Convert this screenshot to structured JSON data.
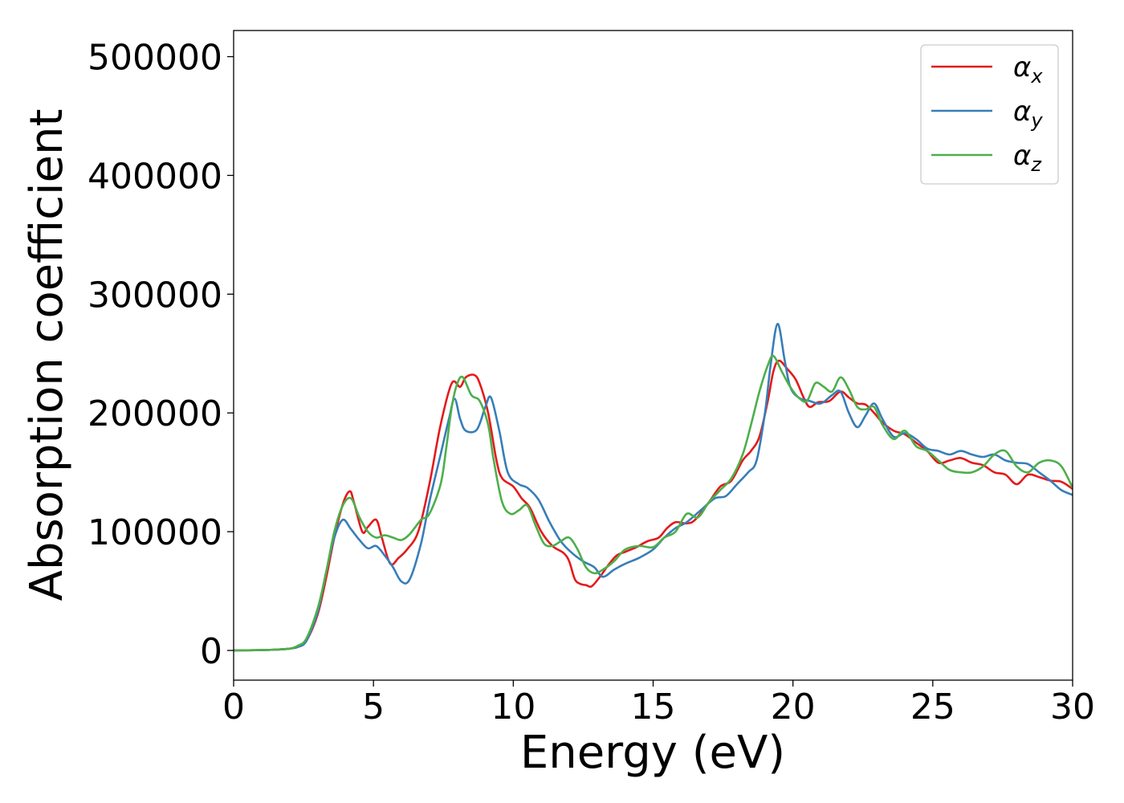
{
  "chart_data": {
    "type": "line",
    "xlabel": "Energy (eV)",
    "ylabel": "Absorption coefficient",
    "xlim": [
      0,
      30
    ],
    "ylim": [
      -25000,
      522000
    ],
    "xticks": [
      0,
      5,
      10,
      15,
      20,
      25,
      30
    ],
    "yticks": [
      0,
      100000,
      200000,
      300000,
      400000,
      500000
    ],
    "grid": false,
    "legend_position": "top-right",
    "series": [
      {
        "name": "α",
        "subscript": "x",
        "color": "#e41a1c",
        "x": [
          0,
          1,
          1.5,
          2,
          2.3,
          2.6,
          3,
          3.3,
          3.6,
          3.9,
          4.15,
          4.3,
          4.6,
          4.8,
          5.1,
          5.3,
          5.6,
          5.9,
          6.2,
          6.6,
          7,
          7.4,
          7.8,
          8.1,
          8.3,
          8.6,
          8.8,
          9.1,
          9.4,
          9.6,
          10,
          10.3,
          10.6,
          11,
          11.4,
          11.8,
          12,
          12.2,
          12.4,
          12.6,
          12.8,
          13.1,
          13.4,
          13.7,
          14,
          14.4,
          14.8,
          15.2,
          15.5,
          15.8,
          16.2,
          16.5,
          17,
          17.4,
          17.8,
          18.2,
          18.5,
          18.8,
          19.1,
          19.3,
          19.5,
          19.8,
          20.1,
          20.4,
          20.6,
          20.9,
          21.3,
          21.7,
          22,
          22.3,
          22.6,
          22.9,
          23.2,
          23.6,
          24,
          24.4,
          24.8,
          25.2,
          25.6,
          26,
          26.4,
          26.8,
          27.2,
          27.6,
          28,
          28.4,
          28.8,
          29.2,
          29.6,
          30
        ],
        "y": [
          0,
          300,
          700,
          1500,
          3000,
          8000,
          30000,
          60000,
          95000,
          123000,
          134000,
          125000,
          100000,
          104000,
          110000,
          95000,
          73000,
          78000,
          85000,
          100000,
          140000,
          190000,
          225000,
          222000,
          230000,
          232000,
          225000,
          200000,
          160000,
          145000,
          138000,
          128000,
          120000,
          100000,
          88000,
          82000,
          75000,
          60000,
          56000,
          55000,
          54000,
          62000,
          72000,
          80000,
          83000,
          87000,
          92000,
          95000,
          103000,
          108000,
          107000,
          110000,
          125000,
          138000,
          143000,
          160000,
          168000,
          180000,
          210000,
          235000,
          244000,
          237000,
          228000,
          212000,
          205000,
          209000,
          210000,
          218000,
          213000,
          208000,
          207000,
          200000,
          192000,
          185000,
          182000,
          175000,
          168000,
          158000,
          160000,
          162000,
          158000,
          156000,
          150000,
          148000,
          140000,
          148000,
          146000,
          143000,
          142000,
          136000
        ]
      },
      {
        "name": "α",
        "subscript": "y",
        "color": "#377eb8",
        "x": [
          0,
          1,
          1.5,
          2,
          2.3,
          2.6,
          3,
          3.3,
          3.6,
          3.9,
          4.2,
          4.5,
          4.8,
          5.1,
          5.4,
          5.7,
          6,
          6.3,
          6.7,
          7,
          7.4,
          7.7,
          7.9,
          8.1,
          8.3,
          8.7,
          9,
          9.2,
          9.5,
          9.8,
          10.2,
          10.5,
          10.9,
          11.3,
          11.7,
          12.1,
          12.5,
          12.9,
          13.2,
          13.6,
          14,
          14.5,
          15,
          15.4,
          15.8,
          16.2,
          16.7,
          17.2,
          17.6,
          18,
          18.4,
          18.7,
          19,
          19.2,
          19.45,
          19.7,
          19.9,
          20.2,
          20.6,
          21,
          21.4,
          21.7,
          22,
          22.3,
          22.6,
          22.9,
          23.2,
          23.6,
          24,
          24.4,
          24.8,
          25.2,
          25.6,
          26,
          26.4,
          26.8,
          27.2,
          27.6,
          28,
          28.4,
          28.8,
          29.2,
          29.6,
          30
        ],
        "y": [
          0,
          300,
          700,
          1500,
          3000,
          8000,
          32000,
          65000,
          95000,
          110000,
          102000,
          93000,
          86000,
          88000,
          80000,
          70000,
          58000,
          60000,
          90000,
          125000,
          165000,
          195000,
          212000,
          195000,
          185000,
          186000,
          205000,
          213000,
          185000,
          150000,
          140000,
          137000,
          127000,
          108000,
          92000,
          82000,
          75000,
          70000,
          62000,
          68000,
          73000,
          78000,
          85000,
          95000,
          103000,
          108000,
          118000,
          128000,
          130000,
          140000,
          150000,
          160000,
          200000,
          240000,
          275000,
          245000,
          222000,
          213000,
          210000,
          208000,
          215000,
          218000,
          200000,
          188000,
          198000,
          208000,
          195000,
          180000,
          183000,
          178000,
          170000,
          168000,
          165000,
          168000,
          165000,
          163000,
          165000,
          160000,
          158000,
          157000,
          150000,
          143000,
          135000,
          131000
        ]
      },
      {
        "name": "α",
        "subscript": "z",
        "color": "#4daf4a",
        "x": [
          0,
          1,
          1.5,
          2,
          2.3,
          2.6,
          3,
          3.3,
          3.6,
          3.9,
          4.2,
          4.5,
          4.8,
          5.1,
          5.4,
          5.7,
          6,
          6.3,
          6.7,
          7,
          7.4,
          7.6,
          7.8,
          8,
          8.2,
          8.5,
          8.8,
          9.1,
          9.3,
          9.6,
          9.9,
          10.2,
          10.5,
          10.8,
          11.1,
          11.4,
          11.7,
          12,
          12.3,
          12.6,
          12.9,
          13.2,
          13.6,
          14,
          14.5,
          15,
          15.4,
          15.8,
          16.2,
          16.6,
          17,
          17.4,
          17.8,
          18.2,
          18.5,
          18.8,
          19.1,
          19.3,
          19.6,
          19.9,
          20.2,
          20.5,
          20.8,
          21.1,
          21.4,
          21.7,
          22,
          22.3,
          22.6,
          22.9,
          23.2,
          23.6,
          24,
          24.4,
          24.8,
          25.2,
          25.6,
          26,
          26.4,
          26.8,
          27.2,
          27.6,
          28,
          28.4,
          28.8,
          29.2,
          29.6,
          30
        ],
        "y": [
          0,
          300,
          700,
          1500,
          4000,
          10000,
          35000,
          65000,
          100000,
          122000,
          128000,
          112000,
          100000,
          95000,
          97000,
          95000,
          93000,
          98000,
          110000,
          115000,
          140000,
          170000,
          205000,
          225000,
          230000,
          215000,
          210000,
          190000,
          160000,
          125000,
          115000,
          118000,
          122000,
          105000,
          90000,
          88000,
          92000,
          95000,
          85000,
          70000,
          65000,
          68000,
          75000,
          85000,
          88000,
          87000,
          95000,
          100000,
          115000,
          112000,
          125000,
          135000,
          145000,
          165000,
          190000,
          218000,
          240000,
          248000,
          235000,
          222000,
          213000,
          210000,
          225000,
          222000,
          218000,
          230000,
          220000,
          205000,
          203000,
          205000,
          190000,
          178000,
          185000,
          172000,
          168000,
          160000,
          152000,
          150000,
          150000,
          155000,
          165000,
          168000,
          155000,
          150000,
          158000,
          160000,
          155000,
          137000
        ]
      }
    ]
  }
}
